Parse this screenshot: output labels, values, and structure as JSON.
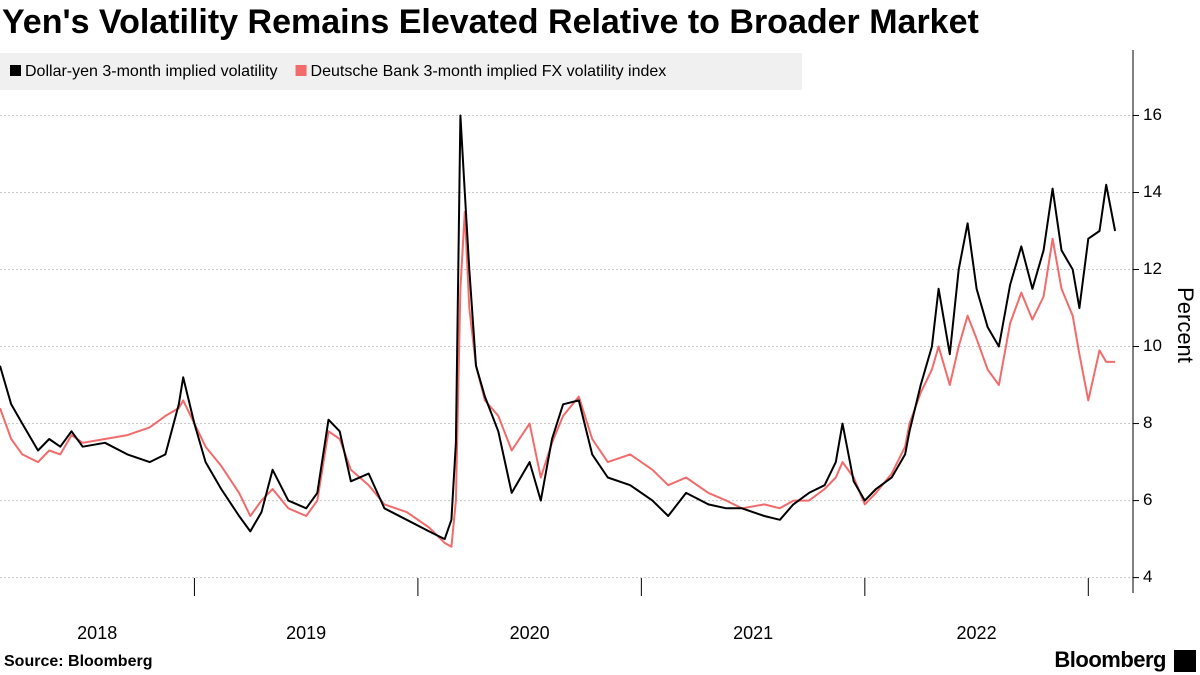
{
  "chart_data": {
    "type": "line",
    "title": "Yen's Volatility Remains Elevated Relative to Broader Market",
    "y_label": "Percent",
    "source": "Source: Bloomberg",
    "brand": "Bloomberg",
    "x": [
      2018.13,
      2018.18,
      2018.23,
      2018.3,
      2018.35,
      2018.4,
      2018.45,
      2018.5,
      2018.6,
      2018.7,
      2018.8,
      2018.87,
      2018.93,
      2018.95,
      2019.0,
      2019.05,
      2019.12,
      2019.2,
      2019.25,
      2019.3,
      2019.35,
      2019.42,
      2019.5,
      2019.55,
      2019.6,
      2019.65,
      2019.7,
      2019.78,
      2019.85,
      2019.95,
      2020.05,
      2020.12,
      2020.15,
      2020.17,
      2020.19,
      2020.21,
      2020.23,
      2020.26,
      2020.3,
      2020.36,
      2020.42,
      2020.5,
      2020.55,
      2020.6,
      2020.65,
      2020.72,
      2020.78,
      2020.85,
      2020.95,
      2021.05,
      2021.12,
      2021.2,
      2021.3,
      2021.38,
      2021.45,
      2021.55,
      2021.62,
      2021.68,
      2021.75,
      2021.82,
      2021.87,
      2021.9,
      2021.95,
      2022.0,
      2022.05,
      2022.12,
      2022.18,
      2022.2,
      2022.25,
      2022.3,
      2022.33,
      2022.38,
      2022.42,
      2022.46,
      2022.5,
      2022.55,
      2022.6,
      2022.65,
      2022.7,
      2022.75,
      2022.8,
      2022.84,
      2022.88,
      2022.93,
      2022.96,
      2023.0,
      2023.05,
      2023.08,
      2023.12
    ],
    "series": [
      {
        "name": "Dollar-yen 3-month implied volatility",
        "color": "#000000",
        "values": [
          9.5,
          8.5,
          8.0,
          7.3,
          7.6,
          7.4,
          7.8,
          7.4,
          7.5,
          7.2,
          7.0,
          7.2,
          8.5,
          9.2,
          8.0,
          7.0,
          6.3,
          5.6,
          5.2,
          5.7,
          6.8,
          6.0,
          5.8,
          6.2,
          8.1,
          7.8,
          6.5,
          6.7,
          5.8,
          5.5,
          5.2,
          5.0,
          5.5,
          7.5,
          16.0,
          14.0,
          12.0,
          9.5,
          8.7,
          7.8,
          6.2,
          7.0,
          6.0,
          7.6,
          8.5,
          8.6,
          7.2,
          6.6,
          6.4,
          6.0,
          5.6,
          6.2,
          5.9,
          5.8,
          5.8,
          5.6,
          5.5,
          5.9,
          6.2,
          6.4,
          7.0,
          8.0,
          6.5,
          6.0,
          6.3,
          6.6,
          7.2,
          7.8,
          9.0,
          10.0,
          11.5,
          9.8,
          12.0,
          13.2,
          11.5,
          10.5,
          10.0,
          11.6,
          12.6,
          11.5,
          12.5,
          14.1,
          12.5,
          12.0,
          11.0,
          12.8,
          13.0,
          14.2,
          13.0
        ]
      },
      {
        "name": "Deutsche Bank 3-month implied FX volatility index",
        "color": "#f26b6b",
        "values": [
          8.4,
          7.6,
          7.2,
          7.0,
          7.3,
          7.2,
          7.7,
          7.5,
          7.6,
          7.7,
          7.9,
          8.2,
          8.4,
          8.6,
          8.0,
          7.4,
          6.9,
          6.2,
          5.6,
          6.0,
          6.3,
          5.8,
          5.6,
          6.0,
          7.8,
          7.6,
          6.8,
          6.4,
          5.9,
          5.7,
          5.3,
          4.9,
          4.8,
          6.0,
          11.5,
          13.5,
          11.0,
          9.5,
          8.6,
          8.2,
          7.3,
          8.0,
          6.6,
          7.5,
          8.2,
          8.7,
          7.6,
          7.0,
          7.2,
          6.8,
          6.4,
          6.6,
          6.2,
          6.0,
          5.8,
          5.9,
          5.8,
          6.0,
          6.0,
          6.3,
          6.6,
          7.0,
          6.6,
          5.9,
          6.2,
          6.7,
          7.4,
          8.0,
          8.8,
          9.4,
          10.0,
          9.0,
          10.0,
          10.8,
          10.2,
          9.4,
          9.0,
          10.6,
          11.4,
          10.7,
          11.3,
          12.8,
          11.5,
          10.8,
          9.8,
          8.6,
          9.9,
          9.6,
          9.6
        ]
      }
    ],
    "xlim": [
      2018.13,
      2023.2
    ],
    "xticks": [
      2018,
      2019,
      2020,
      2021,
      2022
    ],
    "ylim": [
      3.6,
      17.7
    ],
    "yticks": [
      4,
      6,
      8,
      10,
      12,
      14,
      16
    ],
    "grid": true
  }
}
